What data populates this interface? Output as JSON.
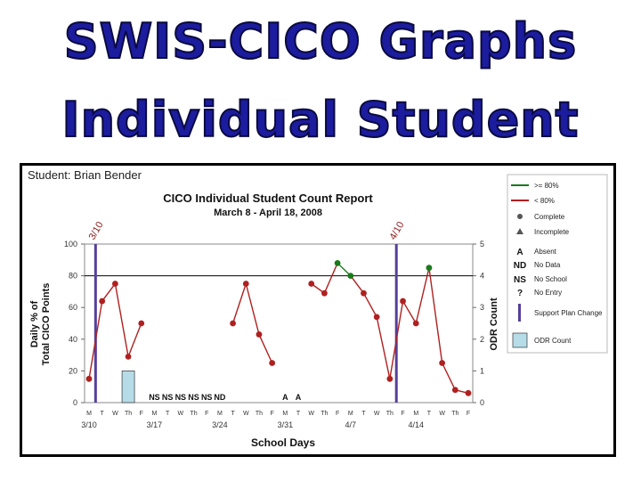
{
  "slide": {
    "title_line1": "SWIS-CICO Graphs",
    "title_line2": "Individual Student"
  },
  "chart_data": {
    "type": "line",
    "student_label": "Student: Brian Bender",
    "title": "CICO Individual Student Count Report",
    "subtitle": "March 8 - April 18, 2008",
    "ylabel": "Daily % of Total CICO Points",
    "y2label": "ODR Count",
    "xlabel": "School Days",
    "ylim": [
      0,
      100
    ],
    "y2lim": [
      0,
      5
    ],
    "yticks": [
      "0",
      "20",
      "40",
      "60",
      "80",
      "100"
    ],
    "y2ticks": [
      "0",
      "1",
      "2",
      "3",
      "4",
      "5"
    ],
    "goal_line": 80,
    "day_letters": [
      "M",
      "T",
      "W",
      "Th",
      "F",
      "M",
      "T",
      "W",
      "Th",
      "F",
      "M",
      "T",
      "W",
      "Th",
      "F",
      "M",
      "T",
      "W",
      "Th",
      "F",
      "M",
      "T",
      "W",
      "Th",
      "F",
      "M",
      "T",
      "W",
      "Th",
      "F"
    ],
    "week_labels": [
      {
        "index": 0,
        "label": "3/10"
      },
      {
        "index": 5,
        "label": "3/17"
      },
      {
        "index": 10,
        "label": "3/24"
      },
      {
        "index": 15,
        "label": "3/31"
      },
      {
        "index": 20,
        "label": "4/7"
      },
      {
        "index": 25,
        "label": "4/14"
      }
    ],
    "points": [
      {
        "day": 0,
        "value": 15
      },
      {
        "day": 1,
        "value": 64
      },
      {
        "day": 2,
        "value": 75
      },
      {
        "day": 3,
        "value": 29
      },
      {
        "day": 4,
        "value": 50
      },
      {
        "day": 11,
        "value": 50
      },
      {
        "day": 12,
        "value": 75
      },
      {
        "day": 13,
        "value": 43
      },
      {
        "day": 14,
        "value": 25
      },
      {
        "day": 17,
        "value": 75
      },
      {
        "day": 18,
        "value": 69
      },
      {
        "day": 19,
        "value": 88
      },
      {
        "day": 20,
        "value": 80
      },
      {
        "day": 21,
        "value": 69
      },
      {
        "day": 22,
        "value": 54
      },
      {
        "day": 23,
        "value": 15
      },
      {
        "day": 24,
        "value": 64
      },
      {
        "day": 25,
        "value": 50
      },
      {
        "day": 26,
        "value": 85
      },
      {
        "day": 27,
        "value": 25
      },
      {
        "day": 28,
        "value": 8
      },
      {
        "day": 29,
        "value": 6
      }
    ],
    "segments": [
      [
        0,
        1,
        2,
        3,
        4
      ],
      [
        11,
        12,
        13,
        14
      ],
      [
        17,
        18,
        19,
        20,
        21,
        22,
        23,
        24,
        25,
        26,
        27,
        28,
        29
      ]
    ],
    "odr": [
      {
        "day": 3,
        "count": 1
      }
    ],
    "support_plan_changes": [
      {
        "day": 1,
        "label": "3/10"
      },
      {
        "day": 24,
        "label": "4/10"
      }
    ],
    "day_codes": [
      {
        "day": 5,
        "code": "NS"
      },
      {
        "day": 6,
        "code": "NS"
      },
      {
        "day": 7,
        "code": "NS"
      },
      {
        "day": 8,
        "code": "NS"
      },
      {
        "day": 9,
        "code": "NS"
      },
      {
        "day": 10,
        "code": "ND"
      },
      {
        "day": 15,
        "code": "A"
      },
      {
        "day": 16,
        "code": "A"
      }
    ],
    "legend": [
      {
        "type": "line",
        "color": "#1a7a1a",
        "label": ">= 80%"
      },
      {
        "type": "line",
        "color": "#b02020",
        "label": "< 80%"
      },
      {
        "type": "dot",
        "label": "Complete"
      },
      {
        "type": "triangle",
        "label": "Incomplete"
      },
      {
        "type": "code",
        "code": "A",
        "label": "Absent"
      },
      {
        "type": "code",
        "code": "ND",
        "label": "No Data"
      },
      {
        "type": "code",
        "code": "NS",
        "label": "No School"
      },
      {
        "type": "code",
        "code": "?",
        "label": "No Entry"
      },
      {
        "type": "bar",
        "color": "#55409a",
        "label": "Support Plan Change"
      },
      {
        "type": "rect",
        "color": "#b6dce8",
        "label": "ODR Count"
      }
    ],
    "colors": {
      "above_goal": "#1a7a1a",
      "below_goal": "#b02020",
      "support_line": "#55409a",
      "odr_fill": "#b6dce8"
    }
  }
}
